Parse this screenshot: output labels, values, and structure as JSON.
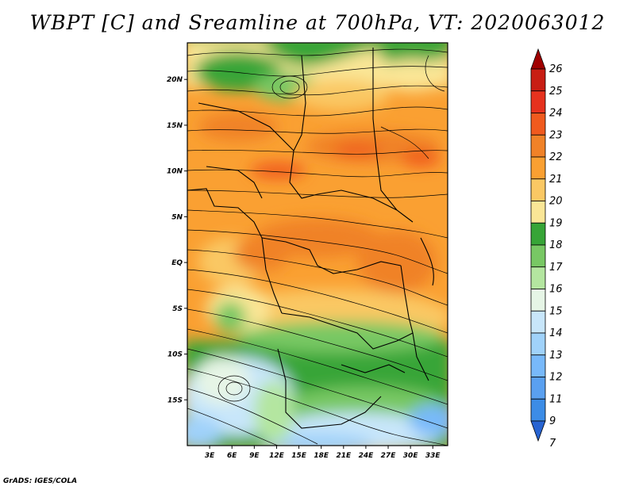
{
  "title": "WBPT [C] and Sreamline at 700hPa, VT: 2020063012",
  "footer": "GrADS: IGES/COLA",
  "map": {
    "variable": "WBPT [C]",
    "level": "700hPa",
    "valid_time": "2020063012",
    "lon_range": [
      0,
      35
    ],
    "lat_range": [
      -20,
      24
    ],
    "lat_ticks": [
      {
        "label": "20N",
        "value": 20
      },
      {
        "label": "15N",
        "value": 15
      },
      {
        "label": "10N",
        "value": 10
      },
      {
        "label": "5N",
        "value": 5
      },
      {
        "label": "EQ",
        "value": 0
      },
      {
        "label": "5S",
        "value": -5
      },
      {
        "label": "10S",
        "value": -10
      },
      {
        "label": "15S",
        "value": -15
      }
    ],
    "lon_ticks": [
      {
        "label": "3E",
        "value": 3
      },
      {
        "label": "6E",
        "value": 6
      },
      {
        "label": "9E",
        "value": 9
      },
      {
        "label": "12E",
        "value": 12
      },
      {
        "label": "15E",
        "value": 15
      },
      {
        "label": "18E",
        "value": 18
      },
      {
        "label": "21E",
        "value": 21
      },
      {
        "label": "24E",
        "value": 24
      },
      {
        "label": "27E",
        "value": 27
      },
      {
        "label": "30E",
        "value": 30
      },
      {
        "label": "33E",
        "value": 33
      }
    ]
  },
  "colorbar": {
    "labels": [
      "26",
      "25",
      "24",
      "23",
      "22",
      "21",
      "20",
      "19",
      "18",
      "17",
      "16",
      "15",
      "14",
      "13",
      "12",
      "11",
      "9",
      "7"
    ],
    "colors": [
      "#a00000",
      "#c81e14",
      "#e6321e",
      "#f05a1e",
      "#f08228",
      "#faa032",
      "#fac864",
      "#fae696",
      "#37a537",
      "#78c864",
      "#b4e6a0",
      "#e6f5e6",
      "#c8e6fa",
      "#a0d2fa",
      "#78b9fa",
      "#5aa0f0",
      "#3c8ce6",
      "#2864d2"
    ]
  }
}
